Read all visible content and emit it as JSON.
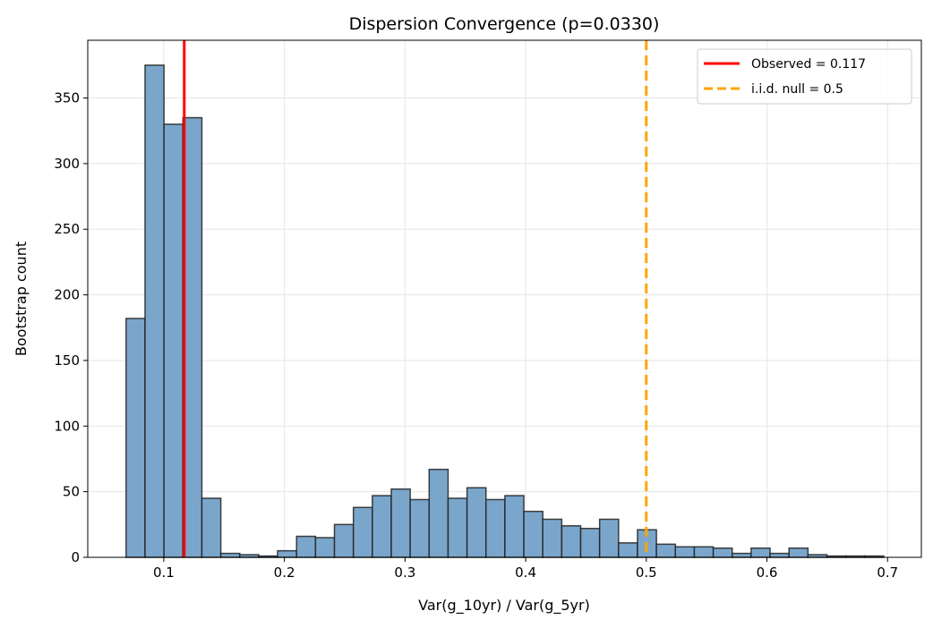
{
  "chart_data": {
    "type": "bar",
    "title": "Dispersion Convergence (p=0.0330)",
    "xlabel": "Var(g_10yr) / Var(g_5yr)",
    "ylabel": "Bootstrap count",
    "xlim": [
      0.037,
      0.728
    ],
    "ylim": [
      0,
      394
    ],
    "xticks": [
      0.1,
      0.2,
      0.3,
      0.4,
      0.5,
      0.6,
      0.7
    ],
    "yticks": [
      0,
      50,
      100,
      150,
      200,
      250,
      300,
      350
    ],
    "grid": true,
    "bin_start": 0.0688,
    "bin_width": 0.0157,
    "counts": [
      182,
      375,
      330,
      335,
      45,
      3,
      2,
      1,
      5,
      16,
      15,
      25,
      38,
      47,
      52,
      44,
      67,
      45,
      53,
      44,
      47,
      35,
      29,
      24,
      22,
      29,
      11,
      21,
      10,
      8,
      8,
      7,
      3,
      7,
      3,
      7,
      2,
      1,
      1,
      1
    ],
    "bar_color": "#7ba6cb",
    "bar_edge": "#222222",
    "lines": [
      {
        "name": "Observed = 0.117",
        "x": 0.117,
        "color": "#ff0000",
        "style": "solid"
      },
      {
        "name": "i.i.d. null = 0.5",
        "x": 0.5,
        "color": "#ffa500",
        "style": "dashed"
      }
    ],
    "legend_position": "top-right"
  }
}
